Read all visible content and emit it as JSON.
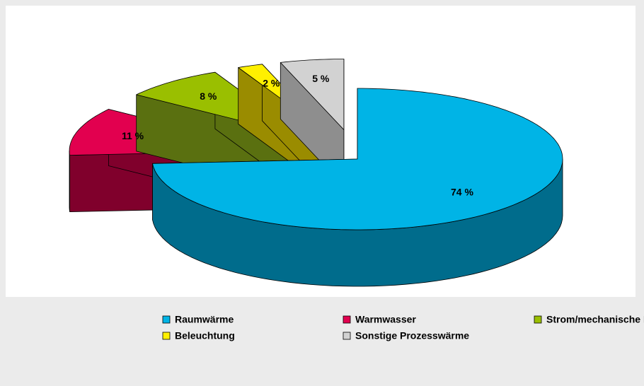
{
  "chart_data": {
    "type": "pie3d",
    "categories": [
      "Raumwärme",
      "Warmwasser",
      "Strom/mechanische Energie",
      "Beleuchtung",
      "Sonstige Prozesswärme"
    ],
    "values": [
      74,
      11,
      8,
      2,
      5
    ],
    "value_labels": [
      "74 %",
      "11 %",
      "8 %",
      "2 %",
      "5 %"
    ],
    "colors": [
      "#00b4e6",
      "#e2004f",
      "#9abf00",
      "#fff000",
      "#d2d2d2"
    ],
    "side_colors": [
      "#006c8c",
      "#80002c",
      "#5a7010",
      "#9a8c00",
      "#8e8e8e"
    ],
    "legend": "bottom"
  }
}
